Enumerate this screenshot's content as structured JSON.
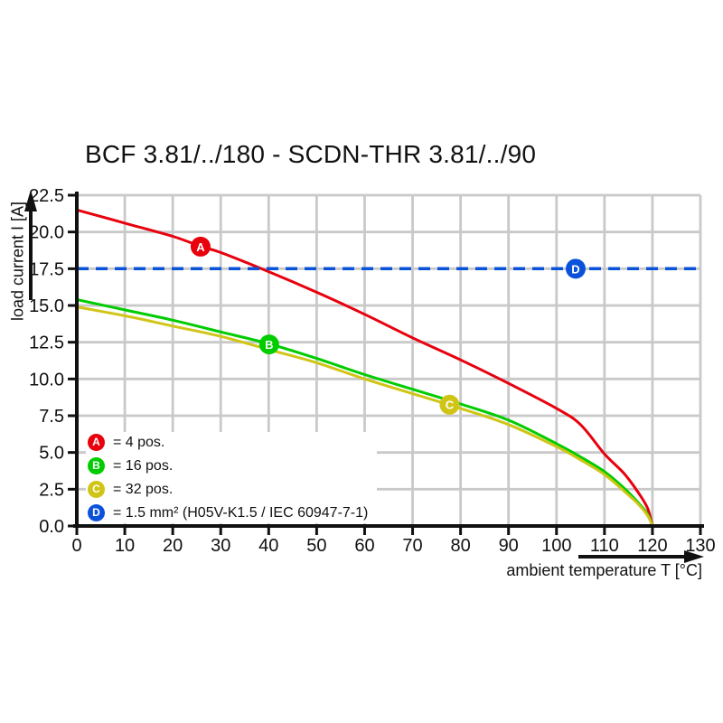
{
  "title": "BCF 3.81/../180 - SCDN-THR 3.81/../90",
  "axes": {
    "x_label": "ambient temperature T [°C]",
    "y_label": "load current I [A]"
  },
  "legend": {
    "items": [
      {
        "badge": "A",
        "color": "#e8000d",
        "label": "= 4 pos."
      },
      {
        "badge": "B",
        "color": "#00cc00",
        "label": "= 16 pos."
      },
      {
        "badge": "C",
        "color": "#d0c516",
        "label": "= 32 pos."
      },
      {
        "badge": "D",
        "color": "#0b52db",
        "label": "= 1.5 mm² (H05V-K1.5 / IEC 60947-7-1)"
      }
    ]
  },
  "chart_data": {
    "type": "line",
    "title": "BCF 3.81/../180 - SCDN-THR 3.81/../90",
    "xlabel": "ambient temperature T [°C]",
    "ylabel": "load current I [A]",
    "xlim": [
      0,
      130
    ],
    "ylim": [
      0,
      22.5
    ],
    "grid": true,
    "grid_color": "#c9c9c9",
    "axis_color": "#111111",
    "legend_position": "bottom-left inside plot",
    "x_ticks": [
      0,
      10,
      20,
      30,
      40,
      50,
      60,
      70,
      80,
      90,
      100,
      110,
      120,
      130
    ],
    "x_tick_labels": [
      "0",
      "10",
      "20",
      "30",
      "40",
      "50",
      "60",
      "70",
      "80",
      "90",
      "100",
      "110",
      "120",
      "130"
    ],
    "y_ticks": [
      0,
      2.5,
      5,
      7.5,
      10,
      12.5,
      15,
      17.5,
      20,
      22.5
    ],
    "y_tick_labels": [
      "0.0",
      "2.5",
      "5.0",
      "7.5",
      "10.0",
      "12.5",
      "15.0",
      "17.5",
      "20.0",
      "22.5"
    ],
    "series": [
      {
        "id": "A",
        "name": "4 pos.",
        "color": "#e8000d",
        "style": "solid",
        "width": 3,
        "points": [
          [
            0,
            21.5
          ],
          [
            10,
            20.6
          ],
          [
            20,
            19.7
          ],
          [
            26,
            19.0
          ],
          [
            30,
            18.6
          ],
          [
            40,
            17.3
          ],
          [
            50,
            15.9
          ],
          [
            60,
            14.4
          ],
          [
            70,
            12.8
          ],
          [
            80,
            11.3
          ],
          [
            90,
            9.7
          ],
          [
            100,
            8.0
          ],
          [
            105,
            6.9
          ],
          [
            110,
            4.9
          ],
          [
            114,
            3.6
          ],
          [
            117,
            2.3
          ],
          [
            119,
            1.2
          ],
          [
            120,
            0
          ]
        ],
        "marker": {
          "label": "A",
          "x": 25.8,
          "y": 19.0
        }
      },
      {
        "id": "B",
        "name": "16 pos.",
        "color": "#00cc00",
        "style": "solid",
        "width": 3,
        "points": [
          [
            0,
            15.4
          ],
          [
            10,
            14.7
          ],
          [
            20,
            14.0
          ],
          [
            30,
            13.2
          ],
          [
            40,
            12.4
          ],
          [
            50,
            11.4
          ],
          [
            60,
            10.3
          ],
          [
            70,
            9.3
          ],
          [
            80,
            8.3
          ],
          [
            90,
            7.2
          ],
          [
            100,
            5.6
          ],
          [
            105,
            4.7
          ],
          [
            110,
            3.7
          ],
          [
            114,
            2.6
          ],
          [
            117,
            1.6
          ],
          [
            119,
            0.8
          ],
          [
            120,
            0
          ]
        ],
        "marker": {
          "label": "B",
          "x": 40.1,
          "y": 12.35
        }
      },
      {
        "id": "C",
        "name": "32 pos.",
        "color": "#d0c516",
        "style": "solid",
        "width": 3,
        "points": [
          [
            0,
            14.9
          ],
          [
            10,
            14.3
          ],
          [
            20,
            13.6
          ],
          [
            30,
            12.9
          ],
          [
            40,
            12.0
          ],
          [
            50,
            11.1
          ],
          [
            60,
            10.0
          ],
          [
            70,
            9.0
          ],
          [
            80,
            8.0
          ],
          [
            90,
            6.9
          ],
          [
            100,
            5.4
          ],
          [
            105,
            4.5
          ],
          [
            110,
            3.5
          ],
          [
            114,
            2.4
          ],
          [
            117,
            1.5
          ],
          [
            119,
            0.7
          ],
          [
            120,
            0
          ]
        ],
        "marker": {
          "label": "C",
          "x": 77.7,
          "y": 8.25
        }
      },
      {
        "id": "D",
        "name": "1.5 mm² (H05V-K1.5 / IEC 60947-7-1)",
        "color": "#0b52db",
        "style": "dashed",
        "width": 3.5,
        "points": [
          [
            0,
            17.5
          ],
          [
            130,
            17.5
          ]
        ],
        "marker": {
          "label": "D",
          "x": 104,
          "y": 17.5
        }
      }
    ]
  }
}
